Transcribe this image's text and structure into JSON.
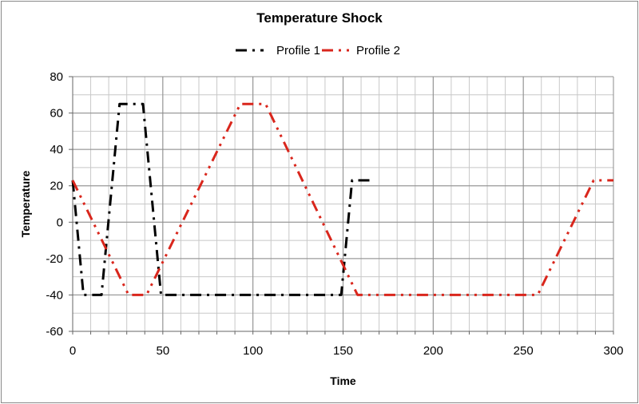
{
  "chart_data": {
    "type": "line",
    "title": "Temperature Shock",
    "xlabel": "Time",
    "ylabel": "Temperature",
    "xlim": [
      0,
      300
    ],
    "ylim": [
      -60,
      80
    ],
    "xticks": [
      0,
      50,
      100,
      150,
      200,
      250,
      300
    ],
    "yticks": [
      -60,
      -40,
      -20,
      0,
      20,
      40,
      60,
      80
    ],
    "grid": true,
    "legend_position": "top",
    "series": [
      {
        "name": "Profile 1",
        "color": "#000000",
        "x": [
          0,
          6,
          16,
          26,
          39,
          49,
          149,
          155,
          165
        ],
        "y": [
          23,
          -40,
          -40,
          65,
          65,
          -40,
          -40,
          23,
          23
        ]
      },
      {
        "name": "Profile 2",
        "color": "#d9261c",
        "x": [
          0,
          31,
          41,
          93,
          107,
          158,
          258,
          289,
          300
        ],
        "y": [
          23,
          -40,
          -40,
          65,
          65,
          -40,
          -40,
          23,
          23
        ]
      }
    ]
  }
}
